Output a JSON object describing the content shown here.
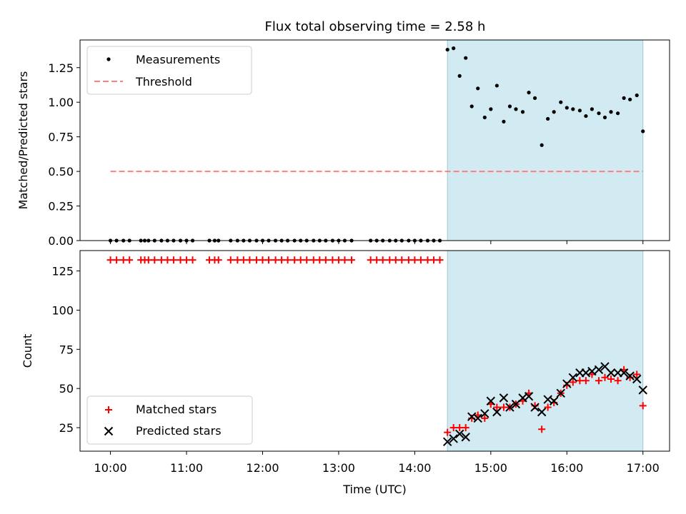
{
  "chart_data": [
    {
      "type": "scatter",
      "title": "Flux total observing time = 2.58 h",
      "ylabel": "Matched/Predicted stars",
      "xlabel": "",
      "ylim": [
        0,
        1.45
      ],
      "xlim_hours": [
        9.6,
        17.35
      ],
      "yticks": [
        "0.00",
        "0.25",
        "0.50",
        "0.75",
        "1.00",
        "1.25"
      ],
      "shaded_region_hours": [
        14.43,
        17.0
      ],
      "threshold": 0.5,
      "threshold_range_hours": [
        10.0,
        17.0
      ],
      "legend": {
        "placement": "upper-left",
        "entries": [
          "Measurements",
          "Threshold"
        ]
      },
      "colors": {
        "measurements": "#000000",
        "threshold": "#ff7f7f",
        "shade": "#add8e6"
      },
      "series": [
        {
          "name": "Measurements",
          "x_hours": [
            10.0,
            10.08,
            10.17,
            10.25,
            10.4,
            10.45,
            10.5,
            10.58,
            10.67,
            10.75,
            10.83,
            10.92,
            11.0,
            11.08,
            11.3,
            11.37,
            11.42,
            11.58,
            11.67,
            11.75,
            11.83,
            11.92,
            12.0,
            12.08,
            12.17,
            12.25,
            12.33,
            12.42,
            12.5,
            12.58,
            12.67,
            12.75,
            12.83,
            12.92,
            13.0,
            13.08,
            13.17,
            13.42,
            13.5,
            13.58,
            13.67,
            13.75,
            13.83,
            13.92,
            14.0,
            14.08,
            14.17,
            14.25,
            14.33,
            14.43,
            14.51,
            14.59,
            14.67,
            14.75,
            14.83,
            14.92,
            15.0,
            15.08,
            15.17,
            15.25,
            15.33,
            15.42,
            15.5,
            15.58,
            15.67,
            15.75,
            15.83,
            15.92,
            16.0,
            16.08,
            16.17,
            16.25,
            16.33,
            16.42,
            16.5,
            16.58,
            16.67,
            16.75,
            16.83,
            16.92,
            17.0
          ],
          "y": [
            0,
            0,
            0,
            0,
            0,
            0,
            0,
            0,
            0,
            0,
            0,
            0,
            0,
            0,
            0,
            0,
            0,
            0,
            0,
            0,
            0,
            0,
            0,
            0,
            0,
            0,
            0,
            0,
            0,
            0,
            0,
            0,
            0,
            0,
            0,
            0,
            0,
            0,
            0,
            0,
            0,
            0,
            0,
            0,
            0,
            0,
            0,
            0,
            0,
            1.38,
            1.39,
            1.19,
            1.32,
            0.97,
            1.1,
            0.89,
            0.95,
            1.12,
            0.86,
            0.97,
            0.95,
            0.93,
            1.07,
            1.03,
            0.69,
            0.88,
            0.93,
            1.0,
            0.96,
            0.95,
            0.94,
            0.9,
            0.95,
            0.92,
            0.89,
            0.93,
            0.92,
            1.03,
            1.02,
            1.05,
            0.79
          ]
        }
      ]
    },
    {
      "type": "scatter",
      "title": "",
      "ylabel": "Count",
      "xlabel": "Time (UTC)",
      "ylim": [
        10,
        138
      ],
      "xlim_hours": [
        9.6,
        17.35
      ],
      "yticks": [
        "25",
        "50",
        "75",
        "100",
        "125"
      ],
      "xticks": [
        "10:00",
        "11:00",
        "12:00",
        "13:00",
        "14:00",
        "15:00",
        "16:00",
        "17:00"
      ],
      "shaded_region_hours": [
        14.43,
        17.0
      ],
      "legend": {
        "placement": "lower-left",
        "entries": [
          "Matched stars",
          "Predicted stars"
        ]
      },
      "colors": {
        "matched": "#ff0000",
        "predicted": "#000000",
        "shade": "#add8e6"
      },
      "series": [
        {
          "name": "Matched stars",
          "x_hours": [
            10.0,
            10.08,
            10.17,
            10.25,
            10.4,
            10.45,
            10.5,
            10.58,
            10.67,
            10.75,
            10.83,
            10.92,
            11.0,
            11.08,
            11.3,
            11.37,
            11.42,
            11.58,
            11.67,
            11.75,
            11.83,
            11.92,
            12.0,
            12.08,
            12.17,
            12.25,
            12.33,
            12.42,
            12.5,
            12.58,
            12.67,
            12.75,
            12.83,
            12.92,
            13.0,
            13.08,
            13.17,
            13.42,
            13.5,
            13.58,
            13.67,
            13.75,
            13.83,
            13.92,
            14.0,
            14.08,
            14.17,
            14.25,
            14.33,
            14.43,
            14.51,
            14.59,
            14.67,
            14.75,
            14.83,
            14.92,
            15.0,
            15.08,
            15.17,
            15.25,
            15.33,
            15.42,
            15.5,
            15.58,
            15.67,
            15.75,
            15.83,
            15.92,
            16.0,
            16.08,
            16.17,
            16.25,
            16.33,
            16.42,
            16.5,
            16.58,
            16.67,
            16.75,
            16.83,
            16.92,
            17.0
          ],
          "y": [
            132,
            132,
            132,
            132,
            132,
            132,
            132,
            132,
            132,
            132,
            132,
            132,
            132,
            132,
            132,
            132,
            132,
            132,
            132,
            132,
            132,
            132,
            132,
            132,
            132,
            132,
            132,
            132,
            132,
            132,
            132,
            132,
            132,
            132,
            132,
            132,
            132,
            132,
            132,
            132,
            132,
            132,
            132,
            132,
            132,
            132,
            132,
            132,
            132,
            22,
            25,
            25,
            25,
            31,
            33,
            31,
            40,
            38,
            38,
            38,
            40,
            42,
            47,
            39,
            24,
            38,
            41,
            47,
            52,
            54,
            55,
            55,
            59,
            55,
            57,
            56,
            55,
            62,
            57,
            59,
            39
          ]
        },
        {
          "name": "Predicted stars",
          "x_hours": [
            14.43,
            14.51,
            14.59,
            14.67,
            14.75,
            14.83,
            14.92,
            15.0,
            15.08,
            15.17,
            15.25,
            15.33,
            15.42,
            15.5,
            15.58,
            15.67,
            15.75,
            15.83,
            15.92,
            16.0,
            16.08,
            16.17,
            16.25,
            16.33,
            16.42,
            16.5,
            16.58,
            16.67,
            16.75,
            16.83,
            16.92,
            17.0
          ],
          "y": [
            16,
            18,
            21,
            19,
            32,
            31,
            34,
            42,
            35,
            44,
            38,
            40,
            44,
            45,
            38,
            35,
            43,
            42,
            47,
            53,
            57,
            60,
            60,
            61,
            62,
            64,
            60,
            60,
            60,
            58,
            56,
            49
          ]
        }
      ]
    }
  ]
}
